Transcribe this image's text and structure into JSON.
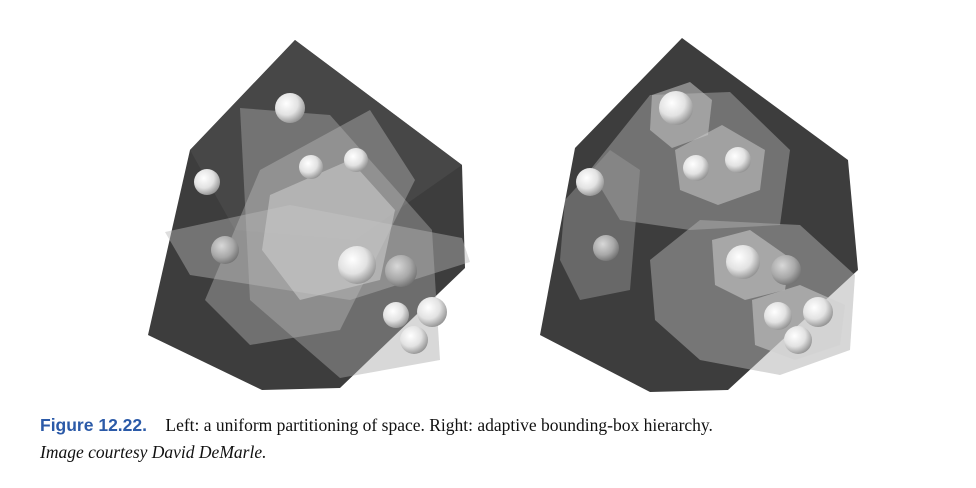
{
  "figure": {
    "label": "Figure 12.22.",
    "caption": "Left: a uniform partitioning of space. Right: adaptive bounding-box hierarchy.",
    "credit": "Image courtesy David DeMarle."
  },
  "palette": {
    "cube_dark": "#3b3b3b",
    "cube_mid": "#555555",
    "plane_light": "#c8c8c8",
    "sphere_light": "#f2f2f2",
    "sphere_dark": "#9a9a9a",
    "label_blue": "#2b5aa8"
  }
}
